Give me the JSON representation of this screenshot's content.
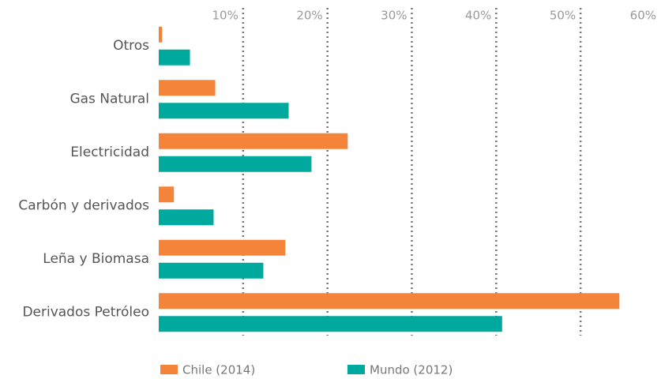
{
  "chart_data": {
    "type": "bar",
    "orientation": "horizontal",
    "categories": [
      "Otros",
      "Gas Natural",
      "Electricidad",
      "Carbón y derivados",
      "Leña y Biomasa",
      "Derivados Petróleo"
    ],
    "series": [
      {
        "name": "Chile (2014)",
        "color": "#f5843b",
        "values": [
          0.4,
          6.7,
          22.4,
          1.8,
          15.0,
          54.6
        ]
      },
      {
        "name": "Mundo (2012)",
        "color": "#00a99d",
        "values": [
          3.7,
          15.4,
          18.1,
          6.5,
          12.4,
          40.7
        ]
      }
    ],
    "xlim": [
      0,
      60
    ],
    "xticks": [
      {
        "value": 10,
        "label": "10%"
      },
      {
        "value": 20,
        "label": "20%"
      },
      {
        "value": 30,
        "label": "30%"
      },
      {
        "value": 40,
        "label": "40%"
      },
      {
        "value": 50,
        "label": "50%"
      },
      {
        "value": 60,
        "label": "60%"
      }
    ],
    "grid": true
  }
}
